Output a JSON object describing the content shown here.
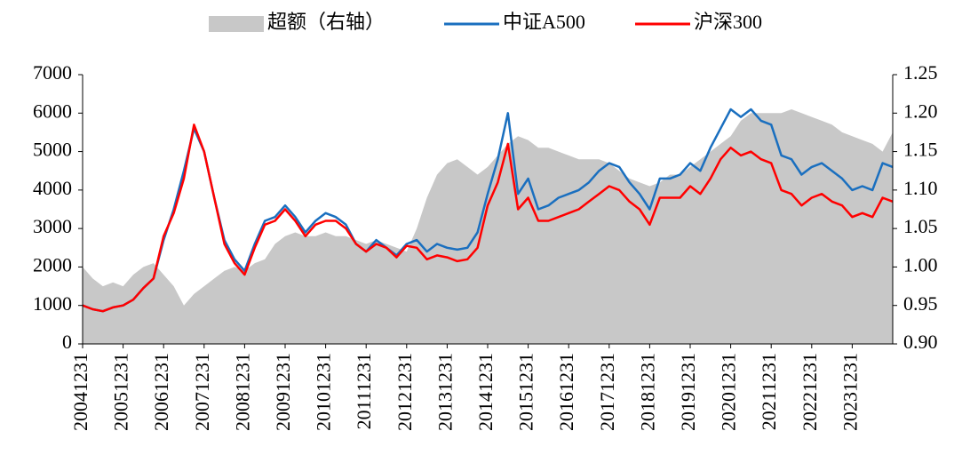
{
  "chart_data": {
    "type": "line",
    "categories": [
      "20041231",
      null,
      null,
      null,
      "20051231",
      null,
      null,
      null,
      "20061231",
      null,
      null,
      null,
      "20071231",
      null,
      null,
      null,
      "20081231",
      null,
      null,
      null,
      "20091231",
      null,
      null,
      null,
      "20101231",
      null,
      null,
      null,
      "20111231",
      null,
      null,
      null,
      "20121231",
      null,
      null,
      null,
      "20131231",
      null,
      null,
      null,
      "20141231",
      null,
      null,
      null,
      "20151231",
      null,
      null,
      null,
      "20161231",
      null,
      null,
      null,
      "20171231",
      null,
      null,
      null,
      "20181231",
      null,
      null,
      null,
      "20191231",
      null,
      null,
      null,
      "20201231",
      null,
      null,
      null,
      "20211231",
      null,
      null,
      null,
      "20221231",
      null,
      null,
      null,
      "20231231",
      null,
      null,
      null,
      null
    ],
    "series": [
      {
        "name": "超额（右轴）",
        "color": "#c8c8c8",
        "axis": "y2",
        "kind": "area",
        "values": [
          1.0,
          0.985,
          0.975,
          0.98,
          0.975,
          0.99,
          1.0,
          1.005,
          0.99,
          0.975,
          0.95,
          0.965,
          0.975,
          0.985,
          0.995,
          1.0,
          0.995,
          1.005,
          1.01,
          1.03,
          1.04,
          1.045,
          1.04,
          1.04,
          1.045,
          1.04,
          1.04,
          1.035,
          1.03,
          1.035,
          1.03,
          1.025,
          1.02,
          1.05,
          1.09,
          1.12,
          1.135,
          1.14,
          1.13,
          1.12,
          1.13,
          1.145,
          1.16,
          1.17,
          1.165,
          1.155,
          1.155,
          1.15,
          1.145,
          1.14,
          1.14,
          1.14,
          1.135,
          1.125,
          1.115,
          1.11,
          1.105,
          1.11,
          1.12,
          1.12,
          1.13,
          1.14,
          1.15,
          1.16,
          1.17,
          1.19,
          1.2,
          1.2,
          1.2,
          1.2,
          1.205,
          1.2,
          1.195,
          1.19,
          1.185,
          1.175,
          1.17,
          1.165,
          1.16,
          1.15,
          1.175
        ]
      },
      {
        "name": "中证A500",
        "color": "#1a6fbf",
        "values": [
          1000,
          900,
          850,
          950,
          1000,
          1150,
          1450,
          1700,
          2700,
          3500,
          4500,
          5600,
          5000,
          3800,
          2700,
          2200,
          1900,
          2600,
          3200,
          3300,
          3600,
          3300,
          2900,
          3200,
          3400,
          3300,
          3100,
          2600,
          2400,
          2700,
          2500,
          2300,
          2600,
          2700,
          2400,
          2600,
          2500,
          2450,
          2500,
          2900,
          3900,
          4800,
          6000,
          3900,
          4300,
          3500,
          3600,
          3800,
          3900,
          4000,
          4200,
          4500,
          4700,
          4600,
          4200,
          3900,
          3500,
          4300,
          4300,
          4400,
          4700,
          4500,
          5100,
          5600,
          6100,
          5900,
          6100,
          5800,
          5700,
          4900,
          4800,
          4400,
          4600,
          4700,
          4500,
          4300,
          4000,
          4100,
          4000,
          4700,
          4600
        ]
      },
      {
        "name": "沪深300",
        "color": "#ff0000",
        "values": [
          1000,
          900,
          850,
          950,
          1000,
          1150,
          1450,
          1700,
          2800,
          3400,
          4300,
          5700,
          5000,
          3800,
          2600,
          2100,
          1800,
          2500,
          3100,
          3200,
          3500,
          3200,
          2800,
          3100,
          3200,
          3200,
          3000,
          2600,
          2400,
          2600,
          2500,
          2250,
          2550,
          2500,
          2200,
          2300,
          2250,
          2150,
          2200,
          2500,
          3600,
          4200,
          5200,
          3500,
          3800,
          3200,
          3200,
          3300,
          3400,
          3500,
          3700,
          3900,
          4100,
          4000,
          3700,
          3500,
          3100,
          3800,
          3800,
          3800,
          4100,
          3900,
          4300,
          4800,
          5100,
          4900,
          5000,
          4800,
          4700,
          4000,
          3900,
          3600,
          3800,
          3900,
          3700,
          3600,
          3300,
          3400,
          3300,
          3800,
          3700
        ]
      }
    ],
    "ylim": [
      0,
      7000
    ],
    "yticks": [
      0,
      1000,
      2000,
      3000,
      4000,
      5000,
      6000,
      7000
    ],
    "y2lim": [
      0.9,
      1.25
    ],
    "y2ticks": [
      {
        "value": 0.9,
        "label": "0.90"
      },
      {
        "value": 0.95,
        "label": "0.95"
      },
      {
        "value": 1.0,
        "label": "1.00"
      },
      {
        "value": 1.05,
        "label": "1.05"
      },
      {
        "value": 1.1,
        "label": "1.10"
      },
      {
        "value": 1.15,
        "label": "1.15"
      },
      {
        "value": 1.2,
        "label": "1.20"
      },
      {
        "value": 1.25,
        "label": "1.25"
      }
    ],
    "legend": "top"
  }
}
